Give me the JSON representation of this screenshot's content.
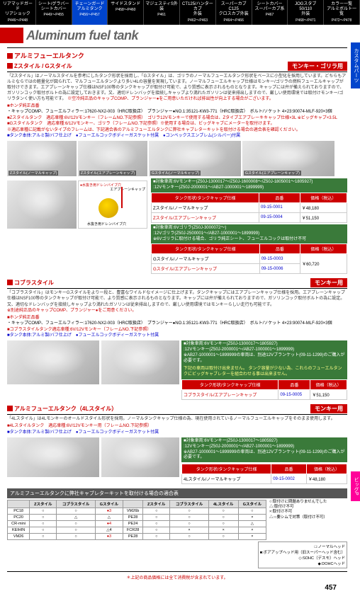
{
  "tabs": [
    {
      "t": "リアマッドガード\nリアショック",
      "p": "P446～P448"
    },
    {
      "t": "シート/グラバー\nシートカバー",
      "p": "P449～P455"
    },
    {
      "t": "チェーンガード\nアルミタンク",
      "p": "P456～P457",
      "hl": true
    },
    {
      "t": "サイドスタンド",
      "p": "P458～P460"
    },
    {
      "t": "マジェスティS外装",
      "p": "P461"
    },
    {
      "t": "CT125/ハンターカブ\n外装",
      "p": "P462～P463"
    },
    {
      "t": "スーパーカブC125\nクロスカブ外装",
      "p": "P464～P466"
    },
    {
      "t": "シートカバー\nスーパーカブ系",
      "p": "P467"
    },
    {
      "t": "JOGスタブ50/110\n外装",
      "p": "P468～P471"
    },
    {
      "t": "カラー一覧\nアルミボルト一覧",
      "p": "P472～P478"
    }
  ],
  "mainTitle": "Aluminum fuel tank",
  "s1": {
    "title": "アルミフューエルタンク",
    "sub": "Zスタイル / Gスタイル",
    "badge": "モンキー・ゴリラ用",
    "desc": "「Zスタイル」はノーマルスタイルを参考にしたタンク形状を採用し、「Gスタイル」は、ゴリラのノーマルフューエルタンク形状をベースに小型化を採用しています。どちらもアルミならではの軽量化が図られて、マルフューエルタンクより多い4Lの容量を実現しています。ノーマルフューエルキャップ仕様はモンキー/ゴリラの燃料フューエルキャップが取付けできます。エアプレーンキャップ仕様はNSF100等のタンクキャップが取付け可能で、より質感に表示されるものとなります。キャップには弁が備えられておりますので、ガソリンコック取付ボルトの為に設定しておきます。又、適切ドレンバッグを接続しキャップより満れたガソリンは従来排出しますので、厳しい使用環境では取付けモンキー/ゴリラタンく使い方も可能です。",
    "descRed": "※空冷純正品のキャップCOMP、プランジャー●をご用意いただければ排出性が向上する場合がございます。",
    "bullets": [
      {
        "c": "r",
        "t": "■ホンダ純正品番"
      },
      {
        "c": "",
        "t": "・キャップCOMP、フューエルフィラー:17620-NX2-003（HRC取扱店）　プランジャー●NO.1:35121-KW3-771（HRC取扱店）　ボルト/ソケット 4×23:90074-MLF-920×3個"
      },
      {
        "c": "r",
        "t": "■Zスタイルタンク　適応車種:6V/12Vモンキー（フレームNO.下記参照）　ゴリラ12Vモンキーで使用する場合は、Zタイプエアブレーキキャップ仕様×3L ※ビッグキャブ×3.5L"
      },
      {
        "c": "r",
        "t": "■Gスタイルタンク　適応車種:6/12Vモンキー、ゴリラ（フレームNO.下記参照）※使用する場合は、ビッグキャブにメーターを取付けます。"
      },
      {
        "c": "r",
        "t": "※適応車種に記載がないタイプのフレームは、下記適合表のアルミフューエルタンクに弊社キャブレターキットを取付ける場合の適合表を確認ください。"
      },
      {
        "c": "b",
        "t": "■タンク本体:アルミ製/バフ仕上げ　●フューエルコックボディーガスケット付属　●コンベックスエンブレム(シルバー)付属"
      }
    ],
    "imgs1": [
      {
        "cap": "Zスタイル(ノーマルキャップ)"
      },
      {
        "cap": "Zスタイル(エアプレーンキャップ)"
      },
      {
        "cap": "Gスタイル(ノーマルキャップ)"
      },
      {
        "cap": "Gスタイル(エアプレーンキャップ)"
      }
    ],
    "spec1": "■対象車両:6Vモンキー(Z50J-1300017～/Z50J-1600008～/Z50J-1805001～1805927)\n:12Vモンキー(Z50J-2000001～/AB27-1000001～1899999)",
    "table1": {
      "hdr": [
        "タンク形状/タンクキャップ仕様",
        "品番",
        "価格（税込）"
      ],
      "rows": [
        [
          "Zスタイル/ノーマルキャップ",
          "09-15-0001",
          "￥48,180"
        ],
        [
          "Zスタイル/エアプレーンキャップ",
          "09-15-0004",
          "￥51,150"
        ]
      ]
    },
    "spec2": "■対象車両:6Vゴリラ(Z50J-3000072～)\n:12Vゴリラ(Z50J-2500001～/AB27-1000001～1899999)\n※6Vゴリラに取付ける場合、ゴリラ純正シート、フューエルコックは取付け不可",
    "table2": {
      "hdr": [
        "タンク形状/タンクキャップ仕様",
        "品番",
        "価格（税込）"
      ],
      "rows": [
        [
          "Gスタイル/ノーマルキャップ",
          "09-15-0003",
          "￥60,720",
          true
        ],
        [
          "Gスタイル/エアプレーンキャップ",
          "09-15-0006",
          "",
          true
        ]
      ]
    },
    "diagLabels": [
      "●水抜き用ドレンバイブ穴",
      "エアプレーンキャップ",
      "水抜き用ドレンバイブ穴"
    ]
  },
  "s2": {
    "sub": "コブラスタイル",
    "badge": "モンキー用",
    "desc": "「コブラスタイル」はモンキーGスタイルをより一段と、豊富なワイルドなイメージに仕上げます。タンクキャップにはエアプレーンキャップ仕様を採用。エアプレーンキャップ仕様はNSF100等のタンクキャップが取付け可能で、より質感に表示されるものとなります。キャップには弁が備えられておりますので、ガソリンコック取付ボルトの為に設定。又、適切なドレンバッグを接続しキャップより満れたガソリンは従来排出しますので、厳しい使用環境ではモンキーらしい走行も可能です。",
    "descRed": "※別途純正品のキャップCOMP、プランジャー●をご用意ください。",
    "bullets": [
      {
        "c": "r",
        "t": "■ホンダ純正品番"
      },
      {
        "c": "",
        "t": "・キャップCOMP、フューエルフィラー:17620-NX2-003（HRC取扱店）　プランジャー●NO.1:35121-KW3-771（HRC取扱店）　ボルト/ソケット 4×23:90074-MLF-920×3個"
      },
      {
        "c": "r",
        "t": "■コブラスタイルタンク適応車種:6V/12Vモンキー（フレームNO.下記参照）"
      },
      {
        "c": "b",
        "t": "■タンク本体:アルミ製/バフ仕上げ　●フューエルコックボディーガスケット付属"
      }
    ],
    "spec": "■対象車両:6Vモンキー(Z50J-1300017～1805927)\n:12Vモンキー(Z50J-2000001～/AB27-1000001～1899999)\n※AB27-1000001～1899999の車両は、別途12Vブランケット(09-11-1299)のご購入が必要です。",
    "specRed": "下記の車両は取付け出来ません。\nタンク容量が少ない為、これらのフューエルタンクにビッグキャブレターを組合わせる事は出来ません。",
    "table": {
      "hdr": [
        "タンク形状/タンクキャップ仕様",
        "品番",
        "価格（税込）"
      ],
      "rows": [
        [
          "コブラスタイル/エアプレーンキャップ",
          "09-15-0005",
          "￥51,150"
        ]
      ]
    }
  },
  "s3": {
    "sub": "アルミフューエルタンク（4Lスタイル）",
    "badge": "モンキー用",
    "desc": "「4Lスタイル」は4Lモンキーのオールドスタイル形状を採用。ノーマルタンクキャップ仕様の為、現在使用されているノーマルフューエルキャップをそのまま使用します。",
    "bullets": [
      {
        "c": "r",
        "t": "■4Lスタイルタンク　適応車種:6V/12Vモンキー用（フレームNO.下記参照）"
      },
      {
        "c": "b",
        "t": "■タンク本体:アルミ製/バフ仕上げ　●フューエルコックボディーガスケット付属"
      }
    ],
    "spec": "■対象車両:6Vモンキー(Z50J-1300017～1805927)\n:12Vモンキー(Z50J-2000001～/AB27-1000001～1899999)\n※AB27-1000001～1899999の車両は、別途12Vブランケット(09-11-1299)のご購入が必要です。",
    "table": {
      "hdr": [
        "タンク形状/タンクキャップ仕様",
        "品番",
        "価格（税込）"
      ],
      "rows": [
        [
          "4Lスタイル/ノーマルキャップ",
          "09-15-0002",
          "￥48,180"
        ]
      ]
    }
  },
  "compat": {
    "title": "アルミフューエルタンクに弊社キャブレターキットを取付ける場合の適合表",
    "hdr": [
      "",
      "Zスタイル",
      "コブラスタイル",
      "Gスタイル",
      "",
      "Zスタイル",
      "コブラスタイル",
      "4Lスタイル",
      "Gスタイル"
    ],
    "rows": [
      [
        "PC18",
        "○",
        "○",
        "●3",
        "VM26b",
        "○",
        "○",
        "○",
        "○"
      ],
      [
        "PC20",
        "○",
        "△",
        "△",
        "PE28",
        "○",
        "○",
        "○",
        "×"
      ],
      [
        "CR-mini",
        "○",
        "○",
        "●4",
        "PE24",
        "○",
        "○",
        "○",
        "△"
      ],
      [
        "KEIHIN",
        "○",
        "○",
        "△4",
        "FCR28",
        "○",
        "×",
        "×",
        "×"
      ],
      [
        "VM26",
        "○",
        "○",
        "●3",
        "PE28",
        "○",
        "○",
        "○",
        "×"
      ]
    ],
    "notes": [
      "○:取付けに問題ありませんでした",
      "△:取付け不可",
      "×:取付け不可",
      "△:○要シムで対策（取付け不可）"
    ],
    "legend": [
      "□:ノーマルヘッド",
      "■:ボアアップヘッド用（旧スーパーヘッド含む）",
      "◇:SOHC（デスモ）ヘッド",
      "◆:DOHCヘッド"
    ]
  },
  "sideTabs": [
    "カスタムパーツ",
    "ビッグP"
  ],
  "footerNote": "＊上記の商品価格には全て消費税が含まれています。",
  "pageNum": "457"
}
